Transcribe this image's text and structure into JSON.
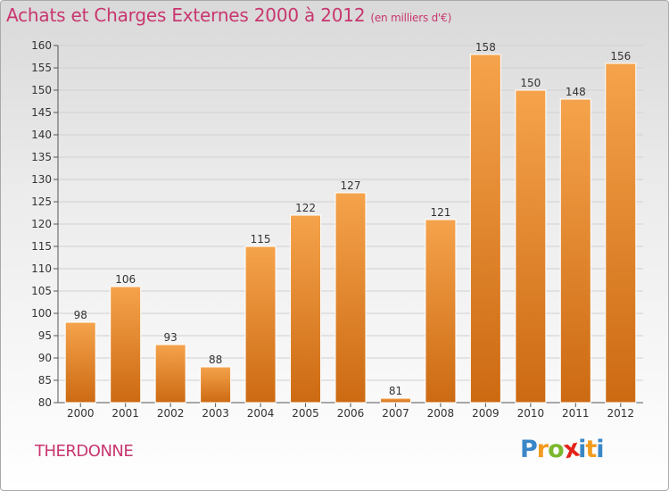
{
  "title": "Achats et Charges Externes 2000 à 2012",
  "subtitle": "(en milliers d'€)",
  "commune": "THERDONNE",
  "logo": {
    "letters": [
      "P",
      "r",
      "o",
      "x",
      "i",
      "t",
      "i"
    ],
    "colors": [
      "#3a87c8",
      "#f29c1f",
      "#7cb82f",
      "#e2231a",
      "#3a87c8",
      "#f29c1f",
      "#3a87c8"
    ]
  },
  "colors": {
    "bar_top": "#f5a34c",
    "bar_bottom": "#cc6a12",
    "accent": "#c8366f"
  },
  "chart_data": {
    "type": "bar",
    "categories": [
      "2000",
      "2001",
      "2002",
      "2003",
      "2004",
      "2005",
      "2006",
      "2007",
      "2008",
      "2009",
      "2010",
      "2011",
      "2012"
    ],
    "values": [
      98,
      106,
      93,
      88,
      115,
      122,
      127,
      81,
      121,
      158,
      150,
      148,
      156
    ],
    "ylim": [
      80,
      160
    ],
    "yticks": [
      80,
      85,
      90,
      95,
      100,
      105,
      110,
      115,
      120,
      125,
      130,
      135,
      140,
      145,
      150,
      155,
      160
    ],
    "grid": true,
    "legend": "none"
  }
}
